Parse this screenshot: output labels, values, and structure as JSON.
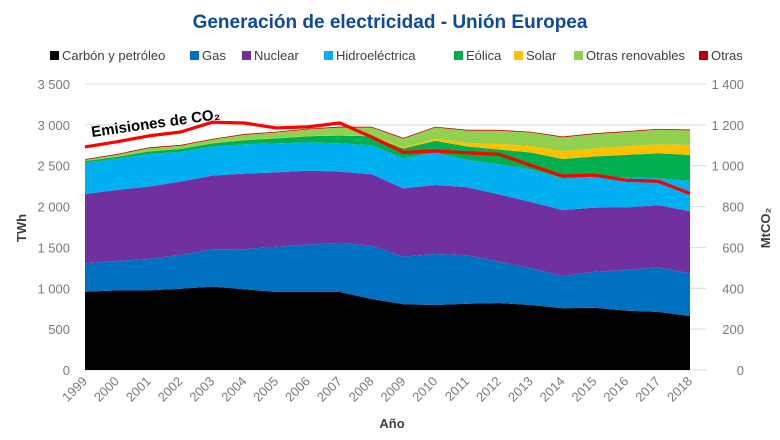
{
  "chart_data": {
    "type": "area",
    "stacked": true,
    "title": "Generación de electricidad - Unión Europea",
    "xlabel": "Año",
    "ylabel": "TWh",
    "y2label": "MtCO₂",
    "ylim": [
      0,
      3500
    ],
    "y2lim": [
      0,
      1400
    ],
    "yticks": [
      "0",
      "500",
      "1 000",
      "1 500",
      "2 000",
      "2 500",
      "3 000",
      "3 500"
    ],
    "y2ticks": [
      "0",
      "200",
      "400",
      "600",
      "800",
      "1 000",
      "1 200",
      "1 400"
    ],
    "grid": true,
    "legend_position": "top",
    "categories": [
      "1999",
      "2000",
      "2001",
      "2002",
      "2003",
      "2004",
      "2005",
      "2006",
      "2007",
      "2008",
      "2009",
      "2010",
      "2011",
      "2012",
      "2013",
      "2014",
      "2015",
      "2016",
      "2017",
      "2018"
    ],
    "series": [
      {
        "name": "Carbón y petróleo",
        "color": "#000000",
        "values": [
          958,
          975,
          975,
          995,
          1020,
          988,
          955,
          955,
          955,
          869,
          804,
          795,
          810,
          820,
          795,
          755,
          762,
          726,
          712,
          660
        ]
      },
      {
        "name": "Gas",
        "color": "#0070c0",
        "values": [
          348,
          359,
          383,
          412,
          457,
          492,
          554,
          579,
          600,
          653,
          583,
          625,
          594,
          506,
          450,
          395,
          441,
          498,
          545,
          523
        ]
      },
      {
        "name": "Nuclear",
        "color": "#7030a0",
        "values": [
          848,
          869,
          886,
          898,
          901,
          923,
          910,
          906,
          873,
          873,
          836,
          844,
          832,
          824,
          811,
          808,
          784,
          766,
          759,
          759
        ]
      },
      {
        "name": "Hidroeléctrica",
        "color": "#00b0f0",
        "values": [
          384,
          380,
          400,
          364,
          356,
          359,
          355,
          346,
          346,
          355,
          367,
          396,
          334,
          368,
          400,
          384,
          375,
          368,
          330,
          371
        ]
      },
      {
        "name": "Eólica",
        "color": "#00b050",
        "values": [
          20,
          25,
          30,
          35,
          40,
          50,
          60,
          75,
          95,
          110,
          120,
          145,
          165,
          180,
          205,
          240,
          250,
          275,
          305,
          320
        ]
      },
      {
        "name": "Solar",
        "color": "#ffc000",
        "values": [
          0,
          0,
          0,
          0,
          0,
          1,
          2,
          3,
          4,
          7,
          15,
          22,
          45,
          70,
          80,
          95,
          100,
          105,
          110,
          120
        ]
      },
      {
        "name": "Otras renovables",
        "color": "#92d050",
        "values": [
          13,
          25,
          40,
          41,
          45,
          65,
          70,
          80,
          95,
          100,
          105,
          140,
          150,
          160,
          165,
          170,
          175,
          175,
          180,
          180
        ]
      },
      {
        "name": "Otras",
        "color": "#c00000",
        "values": [
          10,
          10,
          10,
          10,
          10,
          10,
          10,
          10,
          10,
          10,
          10,
          10,
          10,
          10,
          10,
          10,
          10,
          10,
          10,
          10
        ]
      }
    ],
    "line": {
      "name": "Emisiones de CO₂",
      "axis": "right",
      "color": "#ff0000",
      "values": [
        1092,
        1117,
        1146,
        1165,
        1213,
        1209,
        1185,
        1190,
        1209,
        1141,
        1066,
        1072,
        1063,
        1056,
        1002,
        949,
        954,
        929,
        924,
        864
      ]
    }
  }
}
